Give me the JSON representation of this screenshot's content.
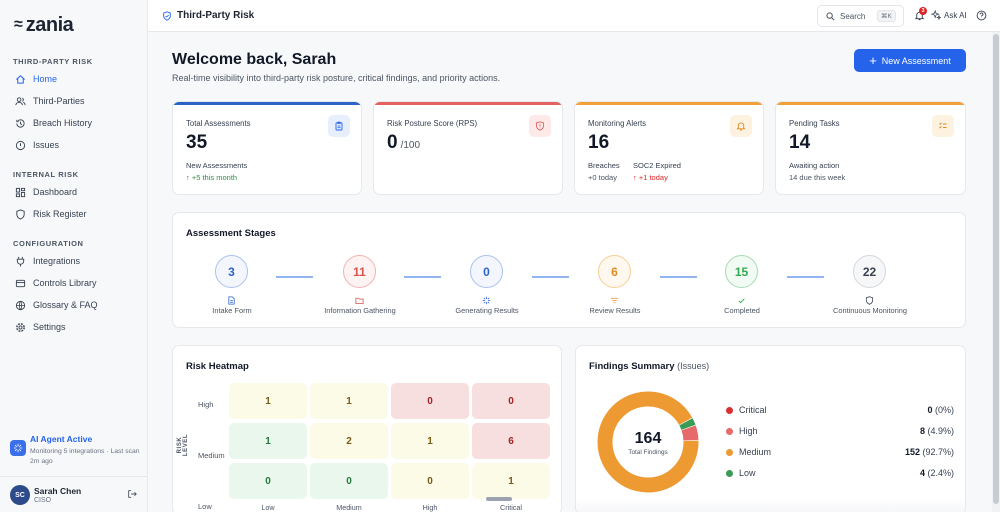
{
  "brand": {
    "logo_mark": "≈",
    "logo_text": "zania"
  },
  "sidebar": {
    "sections": [
      {
        "label": "THIRD-PARTY RISK",
        "items": [
          {
            "label": "Home",
            "icon": "home-icon",
            "active": true
          },
          {
            "label": "Third-Parties",
            "icon": "users-icon"
          },
          {
            "label": "Breach History",
            "icon": "history-icon"
          },
          {
            "label": "Issues",
            "icon": "alert-circle-icon"
          }
        ]
      },
      {
        "label": "INTERNAL RISK",
        "items": [
          {
            "label": "Dashboard",
            "icon": "dashboard-icon"
          },
          {
            "label": "Risk Register",
            "icon": "shield-icon"
          }
        ]
      },
      {
        "label": "CONFIGURATION",
        "items": [
          {
            "label": "Integrations",
            "icon": "plug-icon"
          },
          {
            "label": "Controls Library",
            "icon": "book-icon"
          },
          {
            "label": "Glossary & FAQ",
            "icon": "globe-icon"
          },
          {
            "label": "Settings",
            "icon": "gear-icon"
          }
        ]
      }
    ],
    "agent": {
      "title": "AI Agent Active",
      "subtitle": "Monitoring 5 integrations · Last scan 2m ago"
    },
    "user": {
      "initials": "SC",
      "name": "Sarah Chen",
      "role": "CISO"
    }
  },
  "topbar": {
    "title": "Third-Party Risk",
    "search_label": "Search",
    "search_shortcut": "⌘K",
    "notification_count": "3",
    "ask_ai_label": "Ask AI"
  },
  "header": {
    "welcome": "Welcome back, Sarah",
    "subtitle": "Real-time visibility into third-party risk posture, critical findings, and priority actions.",
    "new_button": "New Assessment"
  },
  "kpis": {
    "total": {
      "label": "Total Assessments",
      "value": "35",
      "sub_label": "New Assessments",
      "trend": "↑ +5 this month",
      "accent": "#2d62c9"
    },
    "rps": {
      "label": "Risk Posture Score (RPS)",
      "value": "0",
      "unit": "/100",
      "accent": "#e4625f"
    },
    "alerts": {
      "label": "Monitoring Alerts",
      "value": "16",
      "breaches_label": "Breaches",
      "breaches_value": "+0 today",
      "soc_label": "SOC2 Expired",
      "soc_value": "↑ +1 today",
      "accent": "#f0a13a"
    },
    "tasks": {
      "label": "Pending Tasks",
      "value": "14",
      "sub_label": "Awaiting action",
      "sub_value": "14 due this week",
      "accent": "#f0a13a"
    }
  },
  "stages": {
    "title": "Assessment Stages",
    "items": [
      {
        "value": "3",
        "label": "Intake Form",
        "color": "#2d62c9",
        "icon": "document-icon"
      },
      {
        "value": "11",
        "label": "Information Gathering",
        "color": "#e4625f",
        "icon": "folder-icon"
      },
      {
        "value": "0",
        "label": "Generating Results",
        "color": "#2d62c9",
        "icon": "sparkle-icon"
      },
      {
        "value": "6",
        "label": "Review Results",
        "color": "#f0a13a",
        "icon": "filter-icon"
      },
      {
        "value": "15",
        "label": "Completed",
        "color": "#34a853",
        "icon": "check-icon"
      },
      {
        "value": "22",
        "label": "Continuous Monitoring",
        "color": "#4b5563",
        "icon": "shield-icon"
      }
    ]
  },
  "heatmap": {
    "title": "Risk Heatmap",
    "y_axis_label": "RISK LEVEL",
    "rows": [
      "High",
      "Medium",
      "Low"
    ],
    "cols": [
      "Low",
      "Medium",
      "High",
      "Critical"
    ],
    "values": [
      [
        "1",
        "1",
        "0",
        "0"
      ],
      [
        "1",
        "2",
        "1",
        "6"
      ],
      [
        "0",
        "0",
        "0",
        "1"
      ]
    ]
  },
  "findings": {
    "title": "Findings Summary",
    "subtitle": "(Issues)",
    "total": "164",
    "total_label": "Total Findings",
    "items": [
      {
        "name": "Critical",
        "count": "0",
        "pct": "(0%)",
        "color": "#d93030",
        "value": 0
      },
      {
        "name": "High",
        "count": "8",
        "pct": "(4.9%)",
        "color": "#e66a6a",
        "value": 8
      },
      {
        "name": "Medium",
        "count": "152",
        "pct": "(92.7%)",
        "color": "#ee9a33",
        "value": 152
      },
      {
        "name": "Low",
        "count": "4",
        "pct": "(2.4%)",
        "color": "#3a9b54",
        "value": 4
      }
    ]
  }
}
